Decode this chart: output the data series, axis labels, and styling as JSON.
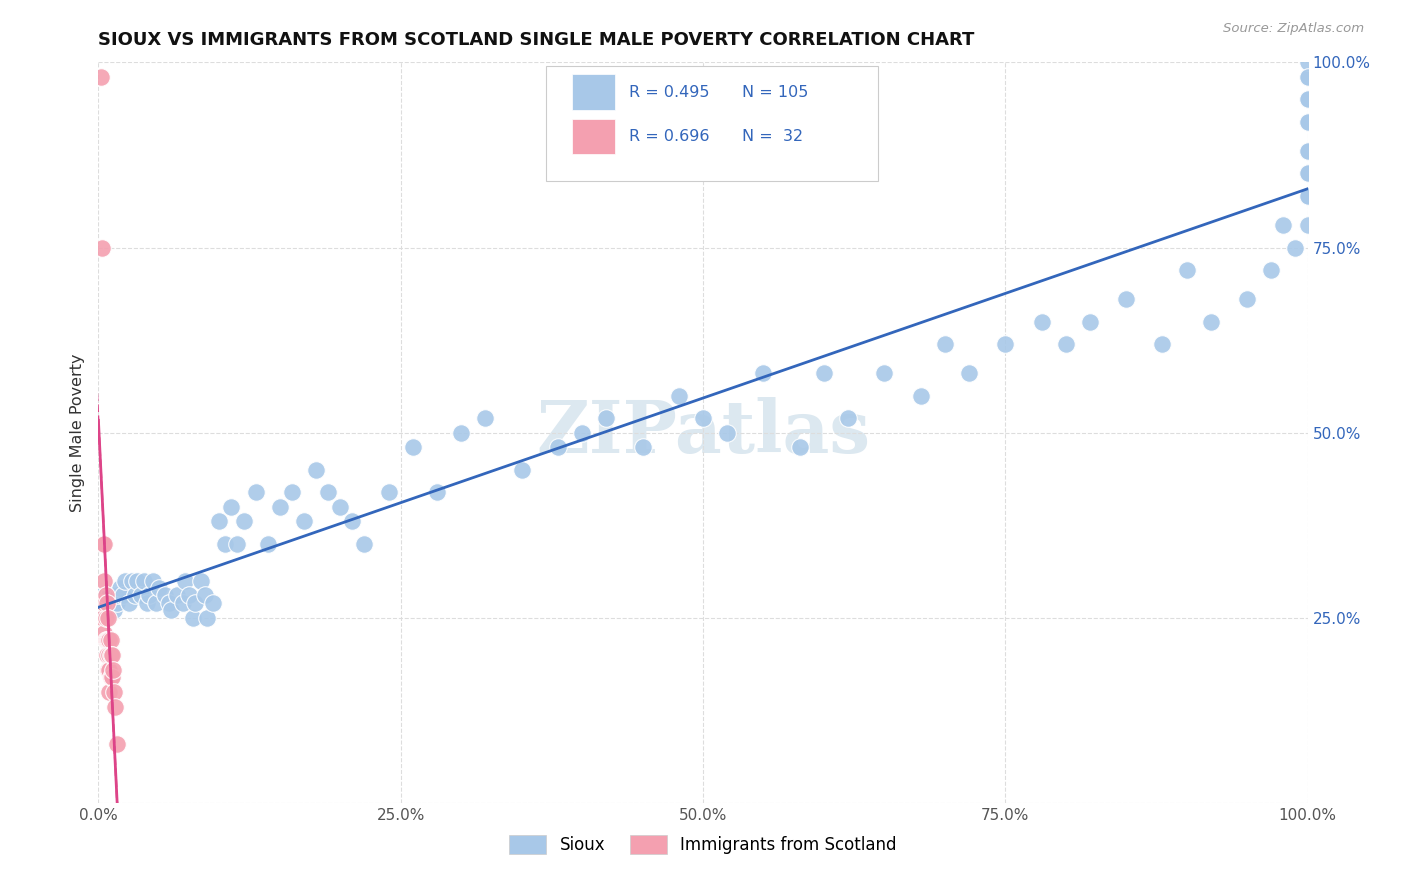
{
  "title": "SIOUX VS IMMIGRANTS FROM SCOTLAND SINGLE MALE POVERTY CORRELATION CHART",
  "source": "Source: ZipAtlas.com",
  "ylabel": "Single Male Poverty",
  "xlim": [
    0.0,
    1.0
  ],
  "ylim": [
    0.0,
    1.0
  ],
  "sioux_color": "#a8c8e8",
  "scotland_color": "#f4a0b0",
  "sioux_line_color": "#3366bb",
  "scotland_line_color": "#dd4488",
  "sioux_R": 0.495,
  "sioux_N": 105,
  "scotland_R": 0.696,
  "scotland_N": 32,
  "background_color": "#ffffff",
  "grid_color": "#dddddd",
  "watermark": "ZIPatlas",
  "watermark_color": "#dce8f0",
  "title_color": "#111111",
  "source_color": "#999999",
  "tick_color": "#3366bb",
  "axis_label_color": "#333333",
  "legend_box_color": "#cccccc",
  "sioux_x": [
    0.003,
    0.004,
    0.005,
    0.006,
    0.007,
    0.008,
    0.009,
    0.01,
    0.012,
    0.013,
    0.014,
    0.015,
    0.016,
    0.018,
    0.02,
    0.022,
    0.025,
    0.028,
    0.03,
    0.032,
    0.035,
    0.038,
    0.04,
    0.042,
    0.045,
    0.048,
    0.05,
    0.055,
    0.058,
    0.06,
    0.065,
    0.07,
    0.072,
    0.075,
    0.078,
    0.08,
    0.085,
    0.088,
    0.09,
    0.095,
    0.1,
    0.105,
    0.11,
    0.115,
    0.12,
    0.13,
    0.14,
    0.15,
    0.16,
    0.17,
    0.18,
    0.19,
    0.2,
    0.21,
    0.22,
    0.24,
    0.26,
    0.28,
    0.3,
    0.32,
    0.35,
    0.38,
    0.4,
    0.42,
    0.45,
    0.48,
    0.5,
    0.52,
    0.55,
    0.58,
    0.6,
    0.62,
    0.65,
    0.68,
    0.7,
    0.72,
    0.75,
    0.78,
    0.8,
    0.82,
    0.85,
    0.88,
    0.9,
    0.92,
    0.95,
    0.97,
    0.98,
    0.99,
    1.0,
    1.0,
    1.0,
    1.0,
    1.0,
    1.0,
    1.0,
    1.0,
    1.0,
    1.0,
    1.0,
    1.0,
    1.0,
    1.0,
    1.0,
    1.0,
    1.0
  ],
  "sioux_y": [
    0.27,
    0.28,
    0.26,
    0.28,
    0.27,
    0.26,
    0.28,
    0.27,
    0.27,
    0.26,
    0.28,
    0.27,
    0.28,
    0.29,
    0.28,
    0.3,
    0.27,
    0.3,
    0.28,
    0.3,
    0.28,
    0.3,
    0.27,
    0.28,
    0.3,
    0.27,
    0.29,
    0.28,
    0.27,
    0.26,
    0.28,
    0.27,
    0.3,
    0.28,
    0.25,
    0.27,
    0.3,
    0.28,
    0.25,
    0.27,
    0.38,
    0.35,
    0.4,
    0.35,
    0.38,
    0.42,
    0.35,
    0.4,
    0.42,
    0.38,
    0.45,
    0.42,
    0.4,
    0.38,
    0.35,
    0.42,
    0.48,
    0.42,
    0.5,
    0.52,
    0.45,
    0.48,
    0.5,
    0.52,
    0.48,
    0.55,
    0.52,
    0.5,
    0.58,
    0.48,
    0.58,
    0.52,
    0.58,
    0.55,
    0.62,
    0.58,
    0.62,
    0.65,
    0.62,
    0.65,
    0.68,
    0.62,
    0.72,
    0.65,
    0.68,
    0.72,
    0.78,
    0.75,
    0.85,
    0.88,
    0.82,
    0.88,
    0.92,
    0.78,
    0.95,
    0.88,
    0.85,
    0.92,
    0.95,
    0.98,
    0.88,
    0.82,
    0.92,
    1.0,
    0.98
  ],
  "scotland_x": [
    0.002,
    0.003,
    0.003,
    0.004,
    0.004,
    0.004,
    0.005,
    0.005,
    0.005,
    0.005,
    0.006,
    0.006,
    0.006,
    0.007,
    0.007,
    0.007,
    0.008,
    0.008,
    0.008,
    0.009,
    0.009,
    0.009,
    0.009,
    0.01,
    0.01,
    0.01,
    0.011,
    0.011,
    0.012,
    0.013,
    0.014,
    0.015
  ],
  "scotland_y": [
    0.98,
    0.75,
    0.27,
    0.35,
    0.27,
    0.25,
    0.35,
    0.3,
    0.27,
    0.23,
    0.28,
    0.25,
    0.22,
    0.27,
    0.22,
    0.2,
    0.25,
    0.22,
    0.18,
    0.22,
    0.2,
    0.18,
    0.15,
    0.22,
    0.2,
    0.17,
    0.2,
    0.17,
    0.18,
    0.15,
    0.13,
    0.08
  ]
}
